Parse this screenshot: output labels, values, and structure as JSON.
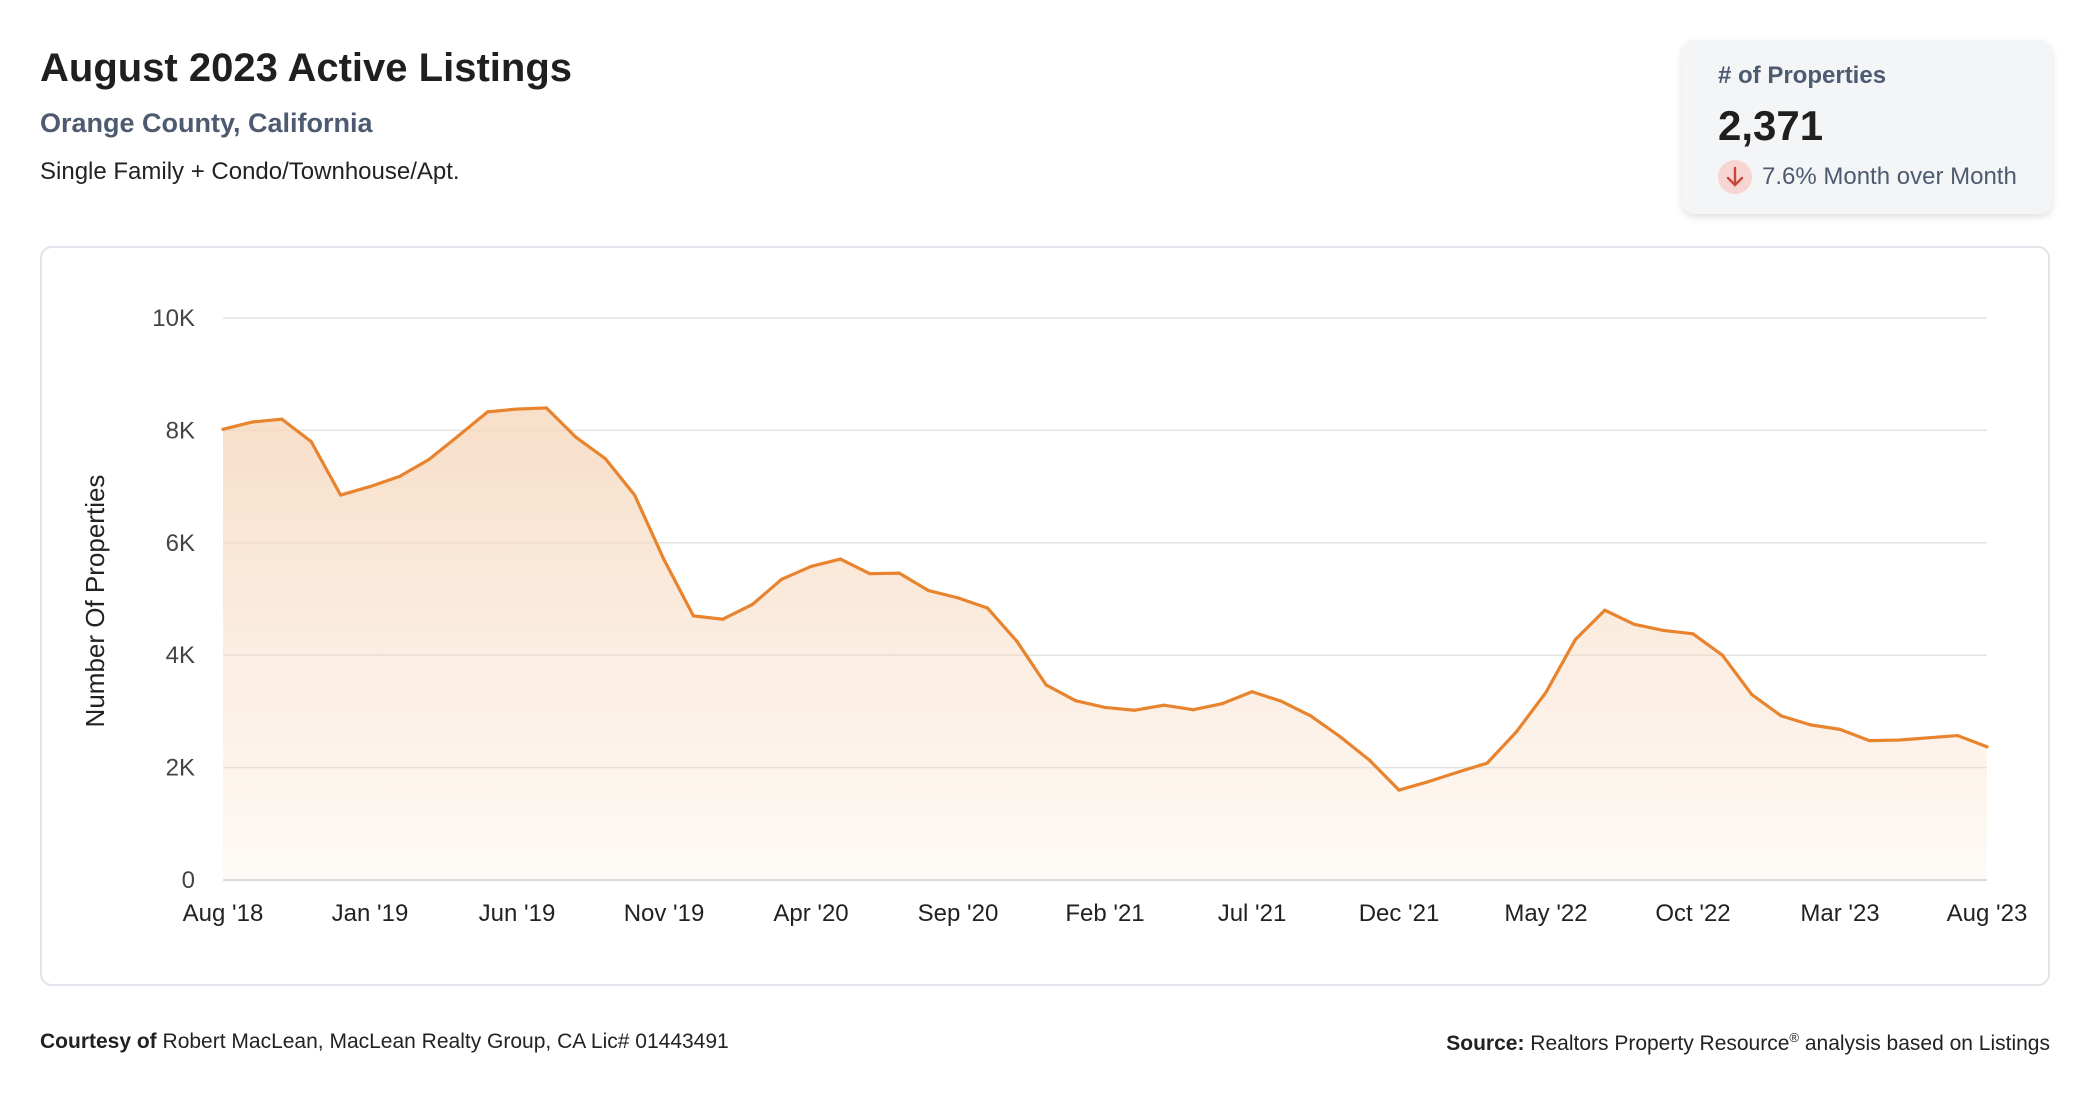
{
  "header": {
    "title": "August 2023 Active Listings",
    "subtitle": "Orange County, California",
    "description": "Single Family + Condo/Townhouse/Apt."
  },
  "stat_card": {
    "label": "# of Properties",
    "value": "2,371",
    "change_text": "7.6% Month over Month",
    "change_direction": "down",
    "icon": "arrow-down-icon"
  },
  "footer": {
    "courtesy_label": "Courtesy of",
    "courtesy_text": "Robert MacLean, MacLean Realty Group, CA Lic# 01443491",
    "source_label": "Source:",
    "source_text_1": "Realtors Property Resource",
    "source_mark": "®",
    "source_text_2": " analysis based on Listings"
  },
  "colors": {
    "line": "#e8832e",
    "fill_top": "#f6d9bf",
    "grid": "#e3e3e3",
    "subtitle": "#4d5a70",
    "down_badge": "#f6d5d2",
    "down_arrow": "#c8453a"
  },
  "chart_data": {
    "type": "area",
    "title": "",
    "xlabel": "",
    "ylabel": "Number Of Properties",
    "ylim": [
      0,
      10000
    ],
    "yticks": [
      0,
      2000,
      4000,
      6000,
      8000,
      10000
    ],
    "ytick_labels": [
      "0",
      "2K",
      "4K",
      "6K",
      "8K",
      "10K"
    ],
    "xtick_labels": [
      "Aug '18",
      "Jan '19",
      "Jun '19",
      "Nov '19",
      "Apr '20",
      "Sep '20",
      "Feb '21",
      "Jul '21",
      "Dec '21",
      "May '22",
      "Oct '22",
      "Mar '23",
      "Aug '23"
    ],
    "grid": true,
    "x": [
      "Aug '18",
      "Sep '18",
      "Oct '18",
      "Nov '18",
      "Dec '18",
      "Jan '19",
      "Feb '19",
      "Mar '19",
      "Apr '19",
      "May '19",
      "Jun '19",
      "Jul '19",
      "Aug '19",
      "Sep '19",
      "Oct '19",
      "Nov '19",
      "Dec '19",
      "Jan '20",
      "Feb '20",
      "Mar '20",
      "Apr '20",
      "May '20",
      "Jun '20",
      "Jul '20",
      "Aug '20",
      "Sep '20",
      "Oct '20",
      "Nov '20",
      "Dec '20",
      "Jan '21",
      "Feb '21",
      "Mar '21",
      "Apr '21",
      "May '21",
      "Jun '21",
      "Jul '21",
      "Aug '21",
      "Sep '21",
      "Oct '21",
      "Nov '21",
      "Dec '21",
      "Jan '22",
      "Feb '22",
      "Mar '22",
      "Apr '22",
      "May '22",
      "Jun '22",
      "Jul '22",
      "Aug '22",
      "Sep '22",
      "Oct '22",
      "Nov '22",
      "Dec '22",
      "Jan '23",
      "Feb '23",
      "Mar '23",
      "Apr '23",
      "May '23",
      "Jun '23",
      "Jul '23",
      "Aug '23"
    ],
    "series": [
      {
        "values": [
          8020,
          8150,
          8200,
          7800,
          6850,
          7000,
          7180,
          7480,
          7900,
          8330,
          8380,
          8400,
          7880,
          7500,
          6850,
          5700,
          4700,
          4640,
          4900,
          5350,
          5580,
          5710,
          5450,
          5460,
          5150,
          5020,
          4840,
          4250,
          3470,
          3190,
          3070,
          3020,
          3110,
          3030,
          3140,
          3350,
          3180,
          2920,
          2550,
          2130,
          1600,
          1750,
          1920,
          2080,
          2640,
          3340,
          4280,
          4800,
          4550,
          4440,
          4380,
          4000,
          3300,
          2920,
          2760,
          2680,
          2480,
          2490,
          2530,
          2570,
          2371
        ]
      }
    ]
  }
}
